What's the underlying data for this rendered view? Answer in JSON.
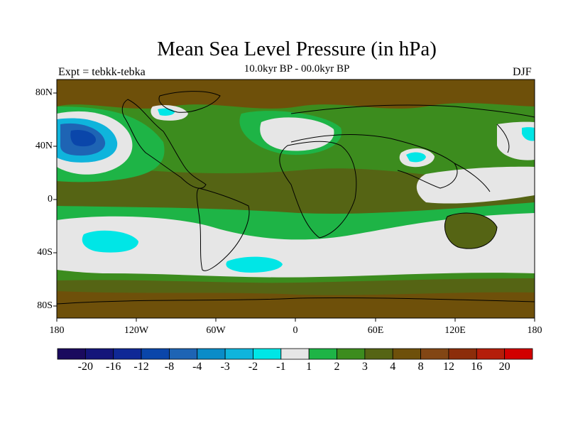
{
  "title": "Mean Sea Level Pressure (in hPa)",
  "subtitle": "10.0kyr BP - 00.0kyr BP",
  "experiment": "Expt = tebkk-tebka",
  "season": "DJF",
  "lat_labels": [
    "80N",
    "40N",
    "0",
    "40S",
    "80S"
  ],
  "lon_labels": [
    "180",
    "120W",
    "60W",
    "0",
    "60E",
    "120E",
    "180"
  ],
  "colorbar": {
    "colors": [
      "#1a0a5e",
      "#14157a",
      "#0f2896",
      "#0a46aa",
      "#1e64b4",
      "#0a8cc8",
      "#0fb4dc",
      "#00e6e6",
      "#e6e6e6",
      "#1eb446",
      "#3c8c1e",
      "#556414",
      "#6e500a",
      "#824614",
      "#8c2d0a",
      "#b41e0a",
      "#d20000"
    ],
    "labels": [
      "-20",
      "-16",
      "-12",
      "-8",
      "-4",
      "-3",
      "-2",
      "-1",
      "1",
      "2",
      "3",
      "4",
      "8",
      "12",
      "16",
      "20"
    ]
  },
  "chart_data": {
    "type": "heatmap",
    "title": "Mean Sea Level Pressure (in hPa)",
    "subtitle": "10.0kyr BP - 00.0kyr BP",
    "x_range_deg": [
      -180,
      180
    ],
    "y_range_deg": [
      -90,
      90
    ],
    "units": "hPa",
    "levels": [
      -20,
      -16,
      -12,
      -8,
      -4,
      -3,
      -2,
      -1,
      1,
      2,
      3,
      4,
      8,
      12,
      16,
      20
    ]
  }
}
